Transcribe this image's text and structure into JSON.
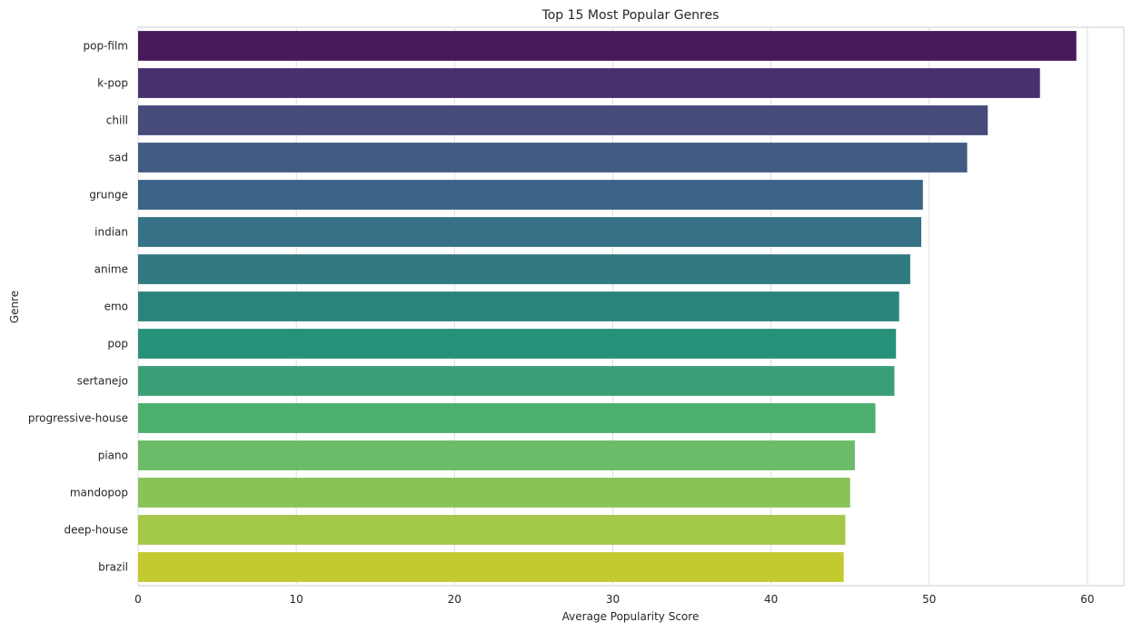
{
  "chart_data": {
    "type": "bar",
    "orientation": "horizontal",
    "title": "Top 15 Most Popular Genres",
    "xlabel": "Average Popularity Score",
    "ylabel": "Genre",
    "xlim": [
      0,
      62.3
    ],
    "xticks": [
      0,
      10,
      20,
      30,
      40,
      50,
      60
    ],
    "grid": true,
    "categories": [
      "pop-film",
      "k-pop",
      "chill",
      "sad",
      "grunge",
      "indian",
      "anime",
      "emo",
      "pop",
      "sertanejo",
      "progressive-house",
      "piano",
      "mandopop",
      "deep-house",
      "brazil"
    ],
    "values": [
      59.3,
      57.0,
      53.7,
      52.4,
      49.6,
      49.5,
      48.8,
      48.1,
      47.9,
      47.8,
      46.6,
      45.3,
      45.0,
      44.7,
      44.6
    ],
    "colors": [
      "#481a5b",
      "#482f6e",
      "#464b7c",
      "#425b83",
      "#3a6386",
      "#357286",
      "#327a81",
      "#2b837e",
      "#28917a",
      "#3a9f77",
      "#4caf6d",
      "#6bbb69",
      "#88c357",
      "#a3c747",
      "#c3ca30"
    ]
  }
}
